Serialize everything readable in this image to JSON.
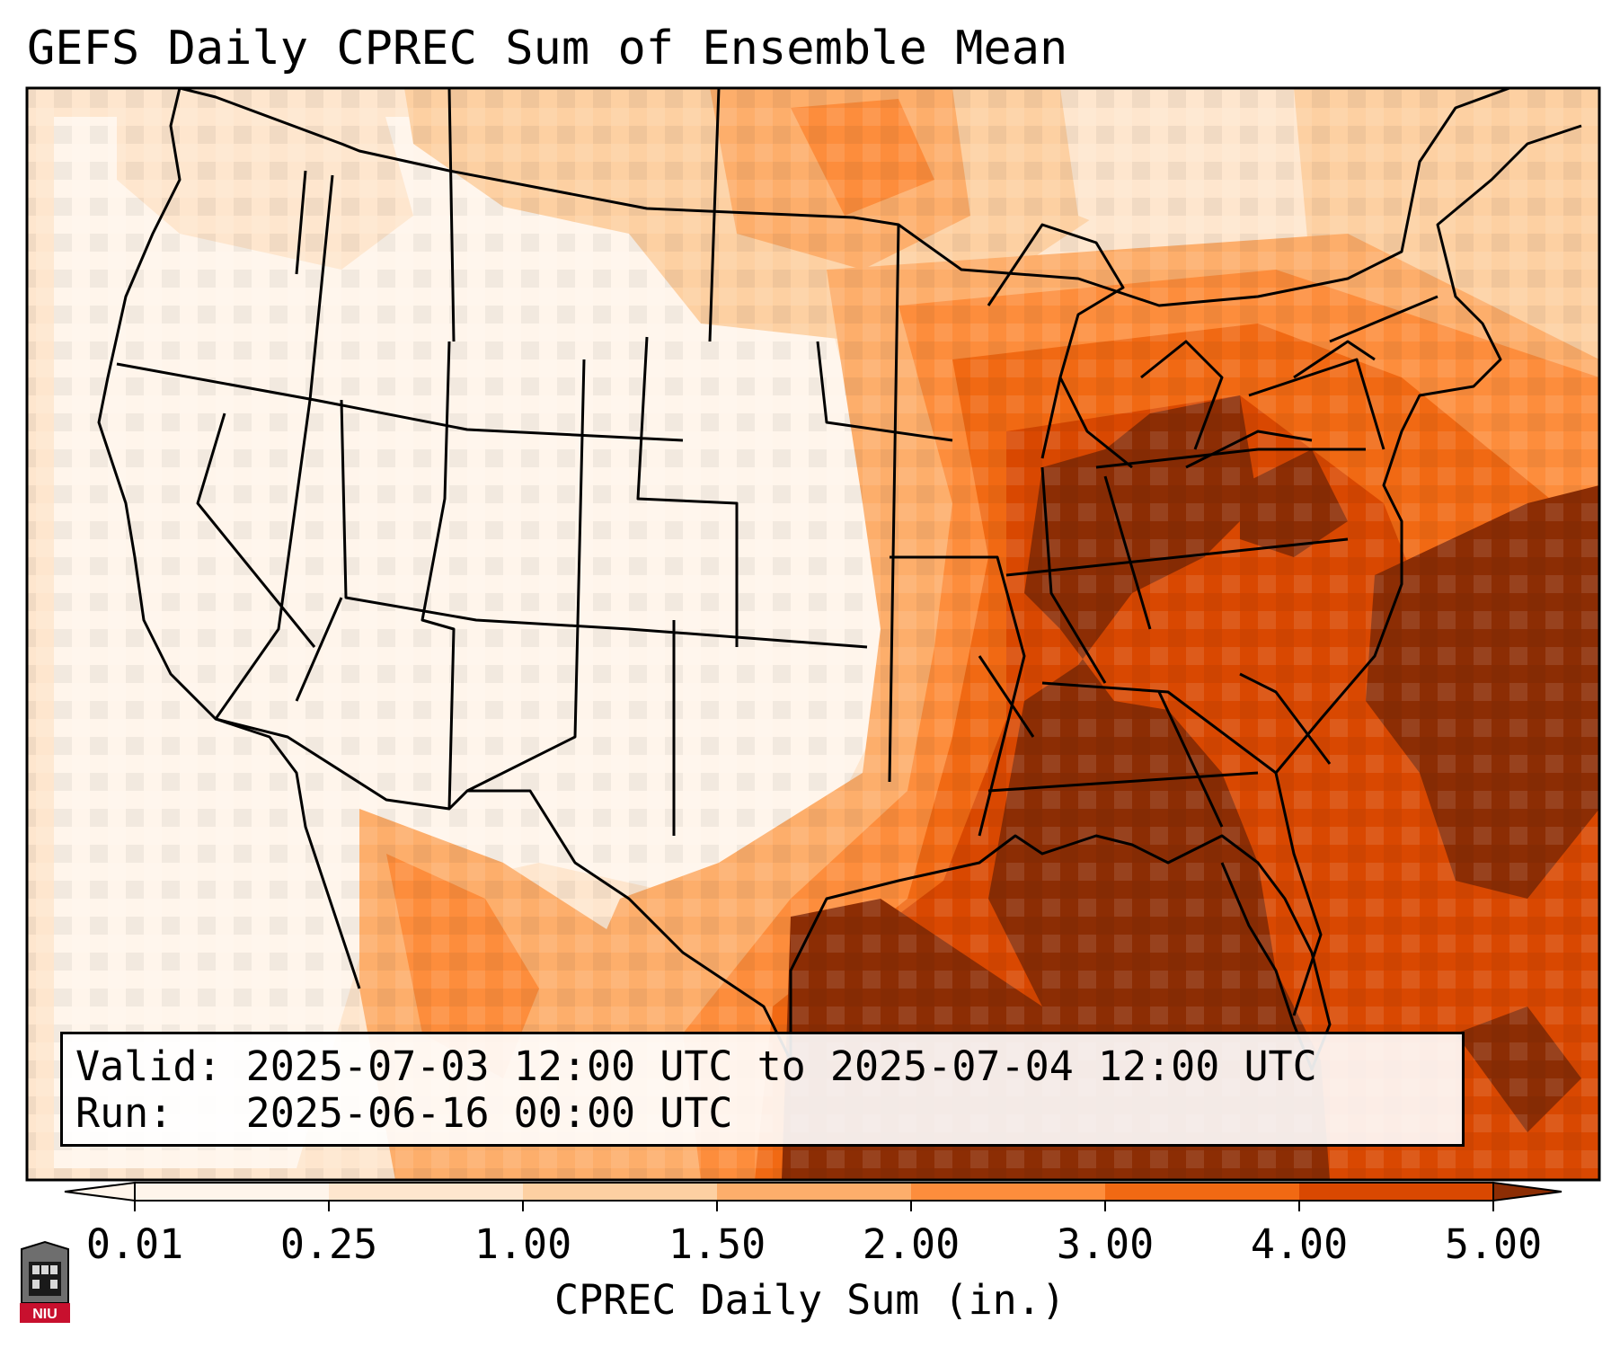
{
  "title": "GEFS Daily CPREC Sum of Ensemble Mean",
  "info": {
    "valid_label": "Valid:",
    "valid_value": "2025-07-03 12:00 UTC to 2025-07-04 12:00 UTC",
    "run_label": "Run:",
    "run_value": "2025-06-16 00:00 UTC"
  },
  "colorbar": {
    "label": "CPREC Daily Sum (in.)",
    "ticks": [
      "0.01",
      "0.25",
      "1.00",
      "1.50",
      "2.00",
      "3.00",
      "4.00",
      "5.00"
    ],
    "colors": [
      "#fff5eb",
      "#fee6ce",
      "#fdd0a2",
      "#fdae6b",
      "#fd8d3c",
      "#f16913",
      "#d94801",
      "#8c2d04"
    ]
  },
  "logo": {
    "name": "niu-logo",
    "text": "NIU"
  }
}
